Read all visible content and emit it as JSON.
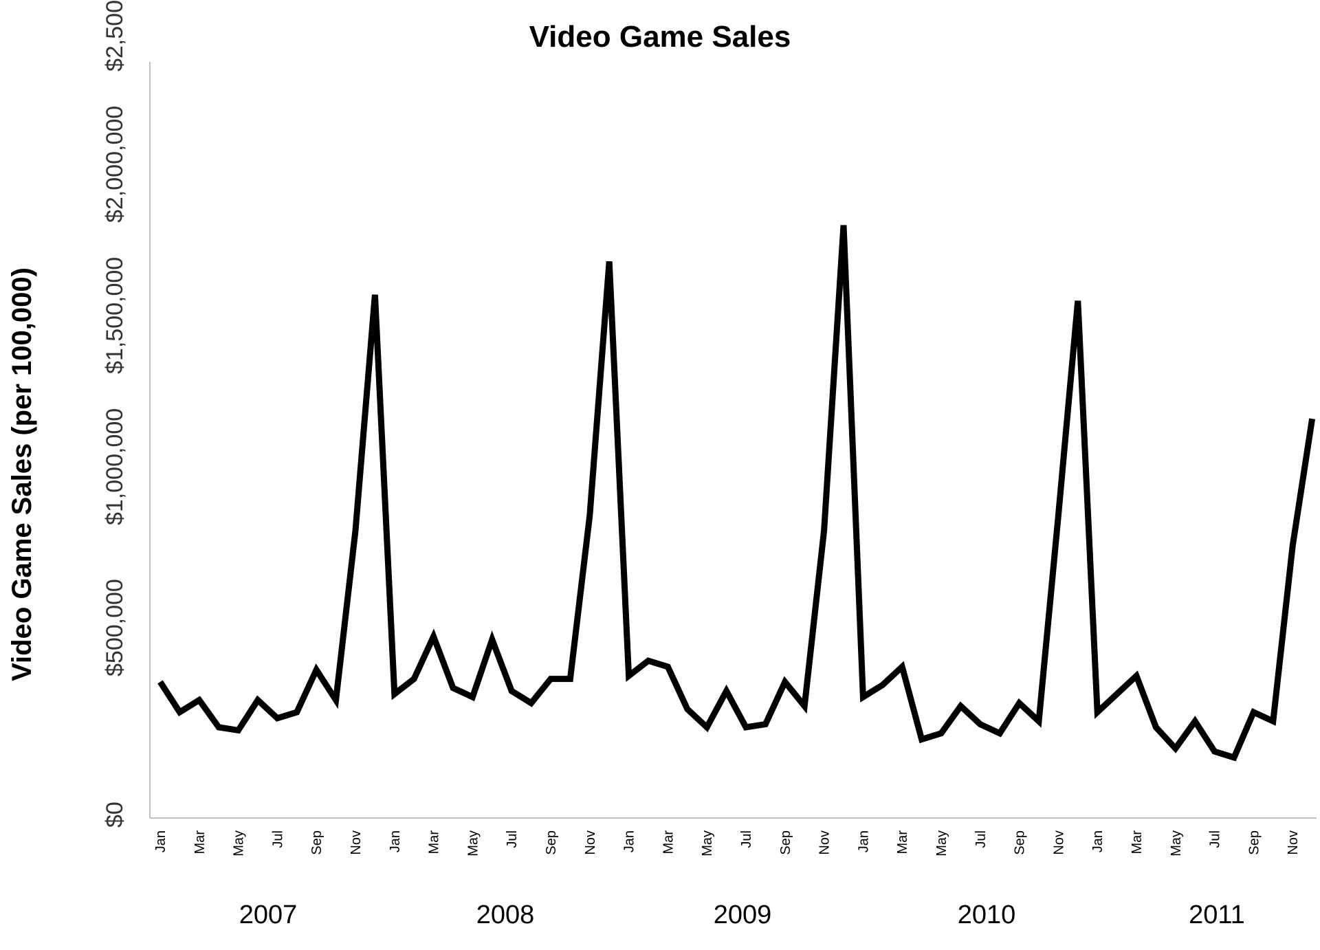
{
  "chart_data": {
    "type": "line",
    "title": "Video Game Sales",
    "ylabel": "Video Game Sales (per 100,000)",
    "xlabel": "",
    "ylim": [
      0,
      2500000
    ],
    "yticks": [
      0,
      500000,
      1000000,
      1500000,
      2000000,
      2500000
    ],
    "ytick_labels": [
      "$0",
      "$500,000",
      "$1,000,000",
      "$1,500,000",
      "$2,000,000",
      "$2,500,000"
    ],
    "month_tick_labels": [
      "Jan",
      "Mar",
      "May",
      "Jul",
      "Sep",
      "Nov"
    ],
    "years": [
      "2007",
      "2008",
      "2009",
      "2010",
      "2011"
    ],
    "grid": false,
    "legend": "none",
    "series": [
      {
        "color": "#000000",
        "values": [
          450000,
          350000,
          390000,
          300000,
          290000,
          390000,
          330000,
          350000,
          490000,
          390000,
          950000,
          1730000,
          410000,
          460000,
          600000,
          430000,
          400000,
          590000,
          420000,
          380000,
          460000,
          460000,
          1000000,
          1840000,
          470000,
          520000,
          500000,
          360000,
          300000,
          420000,
          300000,
          310000,
          450000,
          370000,
          950000,
          1960000,
          400000,
          440000,
          500000,
          260000,
          280000,
          370000,
          310000,
          280000,
          380000,
          320000,
          1000000,
          1710000,
          350000,
          410000,
          470000,
          300000,
          230000,
          320000,
          220000,
          200000,
          350000,
          320000,
          900000,
          1320000
        ]
      }
    ]
  }
}
